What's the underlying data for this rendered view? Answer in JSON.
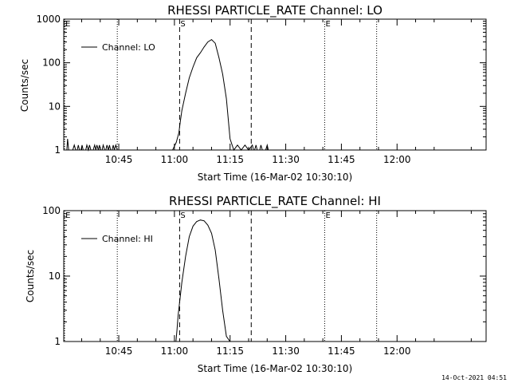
{
  "footer_date": "14-Oct-2021 04:51",
  "chart_data": [
    {
      "type": "line",
      "title": "RHESSI PARTICLE_RATE Channel: LO",
      "xlabel": "Start Time (16-Mar-02 10:30:10)",
      "ylabel": "Counts/sec",
      "yscale": "log",
      "ylim": [
        1,
        1000
      ],
      "yticks": [
        1,
        10,
        100,
        1000
      ],
      "ytick_labels": [
        "1",
        "10",
        "100",
        "1000"
      ],
      "xlim_minutes": [
        630.17,
        744.0
      ],
      "xticks": [
        645,
        660,
        675,
        690,
        705,
        720
      ],
      "xtick_labels": [
        "10:45",
        "11:00",
        "11:15",
        "11:30",
        "11:45",
        "12:00"
      ],
      "grid": false,
      "legend": {
        "position": "top-left",
        "entries": [
          "Channel: LO"
        ]
      },
      "markers": [
        {
          "label": "E",
          "style": "dotted",
          "x": 630.4
        },
        {
          "label": "",
          "style": "dotted",
          "x": 644.6
        },
        {
          "label": "S",
          "style": "dashed",
          "x": 661.4
        },
        {
          "label": "",
          "style": "dashed",
          "x": 680.7
        },
        {
          "label": "E",
          "style": "dotted",
          "x": 700.5
        },
        {
          "label": "",
          "style": "dotted",
          "x": 714.5
        }
      ],
      "series": [
        {
          "name": "Channel: LO",
          "x": [
            630.2,
            631.0,
            631.2,
            631.5,
            632.0,
            632.6,
            633.0,
            633.4,
            633.8,
            634.1,
            634.4,
            634.8,
            635.1,
            635.4,
            635.8,
            636.1,
            636.4,
            636.8,
            637.1,
            637.5,
            637.8,
            638.1,
            638.5,
            638.8,
            639.1,
            639.5,
            639.8,
            640.1,
            640.5,
            640.8,
            641.2,
            641.5,
            641.8,
            642.2,
            642.5,
            642.8,
            643.2,
            643.5,
            643.8,
            644.2,
            644.6,
            659.5,
            660.5,
            661.2,
            661.5,
            662.0,
            663.0,
            664.0,
            665.0,
            666.0,
            667.0,
            668.0,
            669.0,
            670.0,
            671.0,
            672.0,
            673.0,
            674.0,
            675.0,
            676.0,
            677.0,
            678.0,
            679.0,
            680.0,
            681.0,
            681.3,
            681.6,
            682.0,
            682.3,
            682.6,
            683.0,
            683.3,
            683.7,
            684.0,
            684.3,
            684.6,
            685.0,
            685.3,
            685.6,
            686.0,
            686.3,
            687.0
          ],
          "y": [
            1,
            1,
            1.8,
            1,
            1,
            1,
            1.3,
            1,
            1,
            1.3,
            1,
            1,
            1.3,
            1,
            1,
            1,
            1.3,
            1,
            1.3,
            1,
            1,
            1,
            1.3,
            1,
            1.3,
            1,
            1.3,
            1,
            1,
            1.3,
            1,
            1,
            1.3,
            1,
            1.3,
            1,
            1,
            1.3,
            1,
            1.3,
            1,
            1,
            1.5,
            2.5,
            4,
            8,
            20,
            45,
            80,
            130,
            170,
            230,
            300,
            340,
            280,
            130,
            55,
            15,
            1.8,
            1,
            1.3,
            1,
            1.3,
            1,
            1.3,
            1,
            1,
            1.3,
            1,
            1,
            1,
            1.3,
            1,
            1,
            1,
            1,
            1.3,
            1,
            1,
            1,
            1,
            1
          ]
        }
      ]
    },
    {
      "type": "line",
      "title": "RHESSI PARTICLE_RATE Channel: HI",
      "xlabel": "Start Time (16-Mar-02 10:30:10)",
      "ylabel": "Counts/sec",
      "yscale": "log",
      "ylim": [
        1,
        100
      ],
      "yticks": [
        1,
        10,
        100
      ],
      "ytick_labels": [
        "1",
        "10",
        "100"
      ],
      "xlim_minutes": [
        630.17,
        744.0
      ],
      "xticks": [
        645,
        660,
        675,
        690,
        705,
        720
      ],
      "xtick_labels": [
        "10:45",
        "11:00",
        "11:15",
        "11:30",
        "11:45",
        "12:00"
      ],
      "grid": false,
      "legend": {
        "position": "top-left",
        "entries": [
          "Channel: HI"
        ]
      },
      "markers": [
        {
          "label": "E",
          "style": "dotted",
          "x": 630.4
        },
        {
          "label": "",
          "style": "dotted",
          "x": 644.6
        },
        {
          "label": "S",
          "style": "dashed",
          "x": 661.4
        },
        {
          "label": "",
          "style": "dashed",
          "x": 680.7
        },
        {
          "label": "E",
          "style": "dotted",
          "x": 700.5
        },
        {
          "label": "",
          "style": "dotted",
          "x": 714.5
        }
      ],
      "series": [
        {
          "name": "Channel: HI",
          "x": [
            660.4,
            660.7,
            661.0,
            661.5,
            662.0,
            663.0,
            664.0,
            665.0,
            666.0,
            667.0,
            668.0,
            669.0,
            670.0,
            671.0,
            672.0,
            673.0,
            674.0,
            675.0,
            676.0,
            677.0,
            678.0
          ],
          "y": [
            1,
            1.5,
            2.5,
            4.5,
            8,
            20,
            40,
            58,
            68,
            72,
            70,
            60,
            45,
            25,
            9,
            3,
            1.2,
            1,
            1,
            1,
            1
          ]
        }
      ]
    }
  ]
}
